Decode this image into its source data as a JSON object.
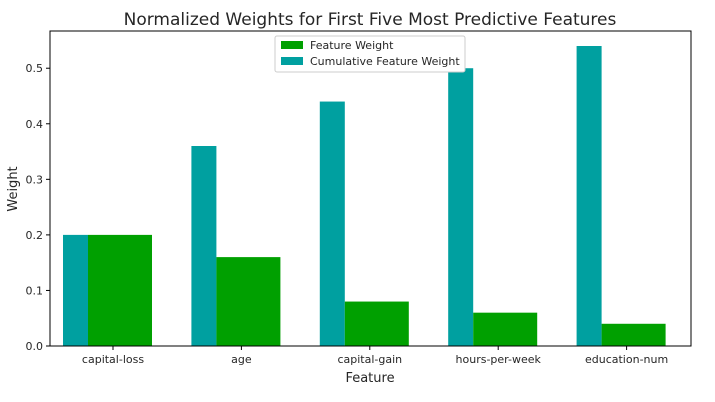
{
  "chart_data": {
    "type": "bar",
    "title": "Normalized Weights for First Five Most Predictive Features",
    "xlabel": "Feature",
    "ylabel": "Weight",
    "categories": [
      "capital-loss",
      "age",
      "capital-gain",
      "hours-per-week",
      "education-num"
    ],
    "series": [
      {
        "name": "Feature Weight",
        "values": [
          0.2,
          0.16,
          0.08,
          0.06,
          0.04
        ],
        "color": "#00a000"
      },
      {
        "name": "Cumulative Feature Weight",
        "values": [
          0.2,
          0.36,
          0.44,
          0.5,
          0.54
        ],
        "color": "#00a0a0"
      }
    ],
    "yticks": [
      "0.0",
      "0.1",
      "0.2",
      "0.3",
      "0.4",
      "0.5"
    ],
    "ylim": [
      0,
      0.567
    ],
    "legend": "top-center",
    "grid": false
  }
}
